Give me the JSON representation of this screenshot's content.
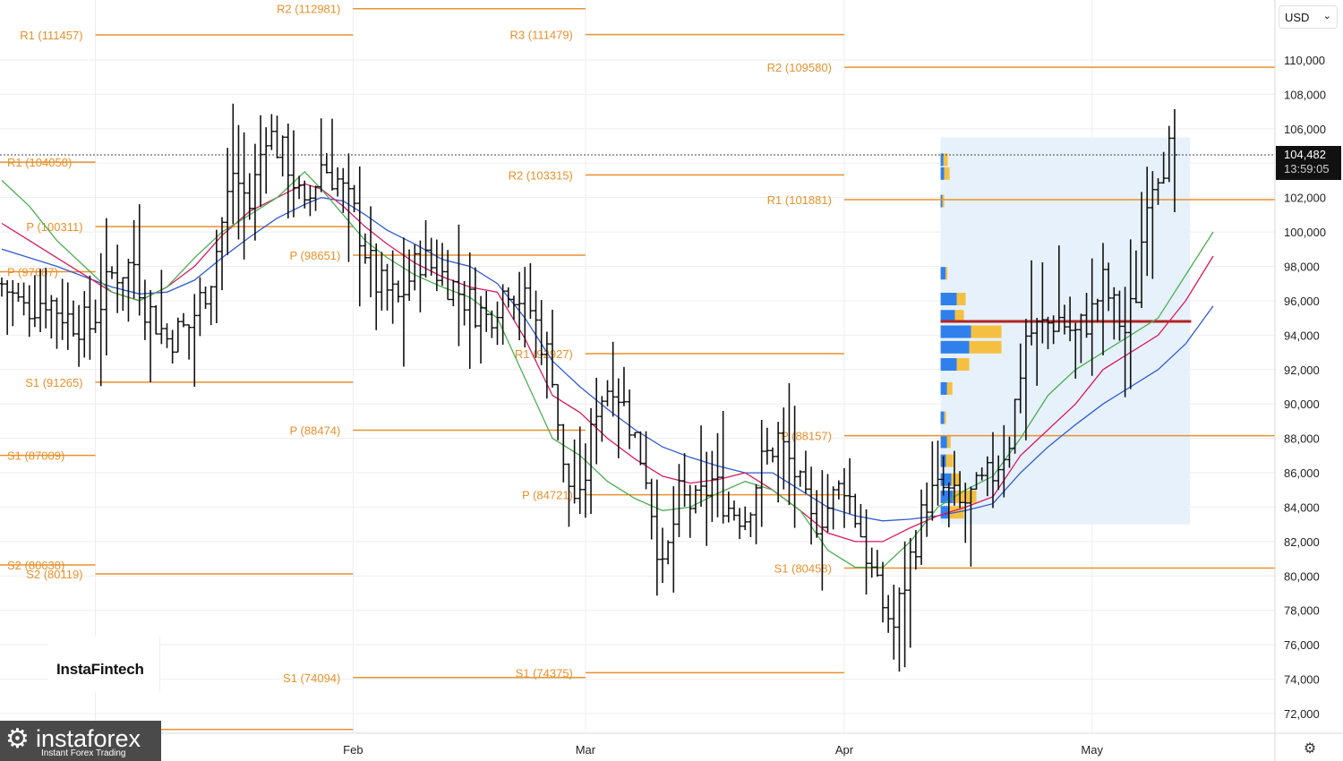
{
  "header": {
    "currency": "USD"
  },
  "current_price": {
    "price_label": "104,482",
    "countdown": "13:59:05"
  },
  "brand": {
    "watermark": "InstaFintech",
    "logo_name": "instaforex",
    "logo_tagline": "Instant Forex Trading"
  },
  "colors": {
    "pivot": "#e8912d",
    "ma_fast": "#4caf50",
    "ma_mid": "#d81b60",
    "ma_slow": "#2f5bd3",
    "poc_line": "#b22222",
    "volume_up": "#2f80ed",
    "volume_down": "#f5c042",
    "bars": "#111111",
    "range_fill": "#e6f1fb"
  },
  "chart_data": {
    "type": "ohlc",
    "title": "",
    "y_axis": {
      "ticks": [
        72000,
        74000,
        76000,
        78000,
        80000,
        82000,
        84000,
        86000,
        88000,
        90000,
        92000,
        94000,
        96000,
        98000,
        100000,
        102000,
        104000,
        106000,
        108000,
        110000
      ],
      "tick_labels": [
        "72,000",
        "74,000",
        "76,000",
        "78,000",
        "80,000",
        "82,000",
        "84,000",
        "86,000",
        "88,000",
        "90,000",
        "92,000",
        "94,000",
        "96,000",
        "98,000",
        "100,000",
        "102,000",
        "104,000",
        "106,000",
        "108,000",
        "110,000"
      ],
      "ylim": [
        71000,
        113600
      ]
    },
    "x_axis": {
      "months": [
        "Feb",
        "Mar",
        "Apr",
        "May"
      ]
    },
    "current_price": 104482,
    "pivot_levels": [
      {
        "label": "R1 (104058)",
        "value": 104058,
        "period": "Dec"
      },
      {
        "label": "P (97687)",
        "value": 97687,
        "period": "Dec"
      },
      {
        "label": "S1 (87009)",
        "value": 87009,
        "period": "Dec"
      },
      {
        "label": "S2 (80638)",
        "value": 80638,
        "period": "Dec"
      },
      {
        "label": "R1 (111457)",
        "value": 111457,
        "period": "Jan"
      },
      {
        "label": "P (100311)",
        "value": 100311,
        "period": "Jan"
      },
      {
        "label": "S1 (91265)",
        "value": 91265,
        "period": "Jan"
      },
      {
        "label": "S2 (80119)",
        "value": 80119,
        "period": "Jan"
      },
      {
        "label": "S2 (71073)",
        "value": 71073,
        "period": "Jan"
      },
      {
        "label": "R2 (112981)",
        "value": 112981,
        "period": "Feb"
      },
      {
        "label": "P (98651)",
        "value": 98651,
        "period": "Feb"
      },
      {
        "label": "P (88474)",
        "value": 88474,
        "period": "Feb"
      },
      {
        "label": "S1 (74094)",
        "value": 74094,
        "period": "Feb"
      },
      {
        "label": "R3 (111479)",
        "value": 111479,
        "period": "Mar"
      },
      {
        "label": "R2 (103315)",
        "value": 103315,
        "period": "Mar"
      },
      {
        "label": "R1 (92927)",
        "value": 92927,
        "period": "Mar"
      },
      {
        "label": "P (84721)",
        "value": 84721,
        "period": "Mar"
      },
      {
        "label": "S1 (74375)",
        "value": 74375,
        "period": "Mar"
      },
      {
        "label": "R2 (109580)",
        "value": 109580,
        "period": "Apr"
      },
      {
        "label": "R1 (101881)",
        "value": 101881,
        "period": "Apr"
      },
      {
        "label": "P (88157)",
        "value": 88157,
        "period": "Apr"
      },
      {
        "label": "S1 (80458)",
        "value": 80458,
        "period": "Apr"
      }
    ],
    "volume_profile": {
      "poc": 94800,
      "range": [
        83000,
        105500
      ],
      "rows": [
        {
          "price": 104200,
          "up": 0.08,
          "down": 0.12
        },
        {
          "price": 103400,
          "up": 0.1,
          "down": 0.15
        },
        {
          "price": 101800,
          "up": 0.05,
          "down": 0.05
        },
        {
          "price": 97600,
          "up": 0.14,
          "down": 0.05
        },
        {
          "price": 96100,
          "up": 0.45,
          "down": 0.25
        },
        {
          "price": 95100,
          "up": 0.4,
          "down": 0.25
        },
        {
          "price": 94200,
          "up": 0.85,
          "down": 0.85
        },
        {
          "price": 93300,
          "up": 0.8,
          "down": 0.9
        },
        {
          "price": 92300,
          "up": 0.45,
          "down": 0.35
        },
        {
          "price": 90900,
          "up": 0.18,
          "down": 0.15
        },
        {
          "price": 89200,
          "up": 0.1,
          "down": 0.05
        },
        {
          "price": 87800,
          "up": 0.18,
          "down": 0.1
        },
        {
          "price": 86700,
          "up": 0.15,
          "down": 0.2
        },
        {
          "price": 85600,
          "up": 0.3,
          "down": 0.25
        },
        {
          "price": 84600,
          "up": 0.35,
          "down": 0.65
        },
        {
          "price": 83700,
          "up": 0.25,
          "down": 0.4
        }
      ]
    },
    "ma_fast": [
      [
        0,
        103000
      ],
      [
        5,
        101500
      ],
      [
        10,
        99500
      ],
      [
        15,
        98000
      ],
      [
        20,
        96500
      ],
      [
        25,
        96000
      ],
      [
        30,
        96800
      ],
      [
        35,
        98500
      ],
      [
        40,
        100000
      ],
      [
        45,
        101000
      ],
      [
        50,
        102000
      ],
      [
        55,
        103500
      ],
      [
        58,
        102500
      ],
      [
        62,
        101000
      ],
      [
        66,
        99500
      ],
      [
        70,
        98500
      ],
      [
        75,
        97500
      ],
      [
        80,
        96800
      ],
      [
        85,
        96200
      ],
      [
        90,
        95000
      ],
      [
        95,
        91500
      ],
      [
        100,
        88000
      ],
      [
        105,
        87000
      ],
      [
        110,
        85500
      ],
      [
        115,
        84500
      ],
      [
        120,
        83800
      ],
      [
        125,
        84000
      ],
      [
        130,
        84800
      ],
      [
        135,
        85500
      ],
      [
        140,
        85000
      ],
      [
        145,
        83800
      ],
      [
        150,
        81500
      ],
      [
        155,
        80500
      ],
      [
        160,
        80500
      ],
      [
        165,
        82000
      ],
      [
        170,
        84000
      ],
      [
        175,
        85000
      ],
      [
        180,
        85800
      ],
      [
        185,
        88000
      ],
      [
        190,
        90500
      ],
      [
        195,
        92000
      ],
      [
        200,
        93000
      ],
      [
        205,
        94000
      ],
      [
        210,
        95000
      ],
      [
        215,
        97500
      ],
      [
        220,
        100000
      ]
    ],
    "ma_mid": [
      [
        0,
        100500
      ],
      [
        5,
        99500
      ],
      [
        10,
        98500
      ],
      [
        15,
        97500
      ],
      [
        20,
        96500
      ],
      [
        25,
        96000
      ],
      [
        30,
        96800
      ],
      [
        35,
        98000
      ],
      [
        40,
        99800
      ],
      [
        45,
        101200
      ],
      [
        50,
        102000
      ],
      [
        55,
        102800
      ],
      [
        58,
        102500
      ],
      [
        62,
        101500
      ],
      [
        66,
        100300
      ],
      [
        70,
        99300
      ],
      [
        75,
        98200
      ],
      [
        80,
        97400
      ],
      [
        85,
        96800
      ],
      [
        90,
        96500
      ],
      [
        95,
        93800
      ],
      [
        100,
        90500
      ],
      [
        105,
        89500
      ],
      [
        110,
        88000
      ],
      [
        115,
        86800
      ],
      [
        120,
        85800
      ],
      [
        125,
        85400
      ],
      [
        130,
        85600
      ],
      [
        135,
        86000
      ],
      [
        140,
        85000
      ],
      [
        145,
        83800
      ],
      [
        150,
        82500
      ],
      [
        155,
        82000
      ],
      [
        160,
        82000
      ],
      [
        165,
        82800
      ],
      [
        170,
        83500
      ],
      [
        175,
        84000
      ],
      [
        180,
        84600
      ],
      [
        185,
        87000
      ],
      [
        190,
        88500
      ],
      [
        195,
        90000
      ],
      [
        200,
        92000
      ],
      [
        205,
        93000
      ],
      [
        210,
        94000
      ],
      [
        215,
        96000
      ],
      [
        220,
        98600
      ]
    ],
    "ma_slow": [
      [
        0,
        99000
      ],
      [
        5,
        98500
      ],
      [
        10,
        98000
      ],
      [
        15,
        97400
      ],
      [
        20,
        96800
      ],
      [
        25,
        96400
      ],
      [
        30,
        96500
      ],
      [
        35,
        97200
      ],
      [
        40,
        98500
      ],
      [
        45,
        99700
      ],
      [
        50,
        100800
      ],
      [
        55,
        101600
      ],
      [
        58,
        102000
      ],
      [
        62,
        101800
      ],
      [
        66,
        101000
      ],
      [
        70,
        100100
      ],
      [
        75,
        99300
      ],
      [
        80,
        98400
      ],
      [
        85,
        98000
      ],
      [
        90,
        97000
      ],
      [
        95,
        95000
      ],
      [
        100,
        92500
      ],
      [
        105,
        91000
      ],
      [
        110,
        89700
      ],
      [
        115,
        88500
      ],
      [
        120,
        87500
      ],
      [
        125,
        86900
      ],
      [
        130,
        86400
      ],
      [
        135,
        86000
      ],
      [
        140,
        86000
      ],
      [
        145,
        85000
      ],
      [
        150,
        84000
      ],
      [
        155,
        83500
      ],
      [
        160,
        83200
      ],
      [
        165,
        83300
      ],
      [
        170,
        83500
      ],
      [
        175,
        83800
      ],
      [
        180,
        84200
      ],
      [
        185,
        86000
      ],
      [
        190,
        87500
      ],
      [
        195,
        88800
      ],
      [
        200,
        90000
      ],
      [
        205,
        91000
      ],
      [
        210,
        92000
      ],
      [
        215,
        93500
      ],
      [
        220,
        95700
      ]
    ]
  }
}
